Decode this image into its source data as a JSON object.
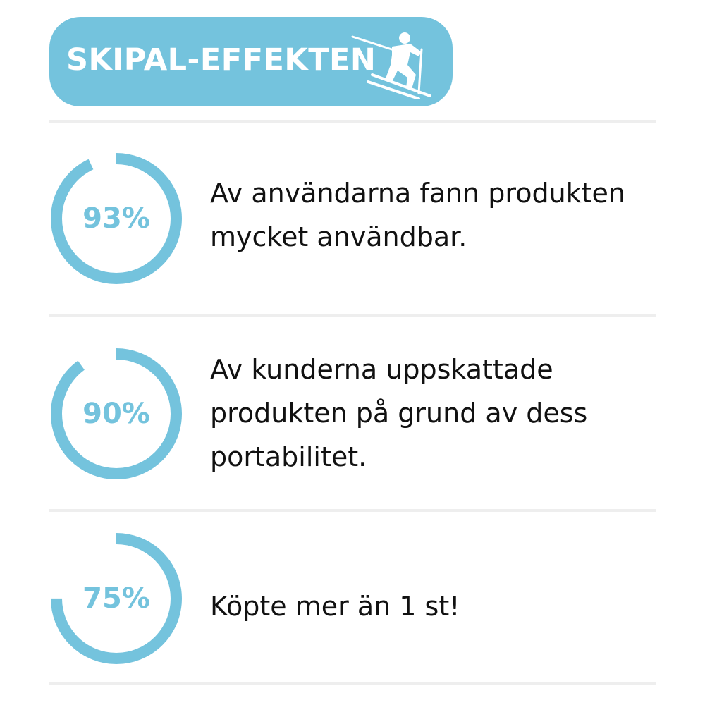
{
  "header": {
    "title": "SKIPAL-EFFEKTEN",
    "icon": "skier-icon",
    "background": "#74c3dd"
  },
  "accent_color": "#74c3dd",
  "stats": [
    {
      "label": "93%",
      "fraction": 0.93,
      "text": "Av användarna fann produkten mycket användbar."
    },
    {
      "label": "90%",
      "fraction": 0.9,
      "text": "Av kunderna uppskattade produkten på grund av dess portabilitet."
    },
    {
      "label": "75%",
      "fraction": 0.75,
      "text": "Köpte mer än 1 st!"
    }
  ]
}
